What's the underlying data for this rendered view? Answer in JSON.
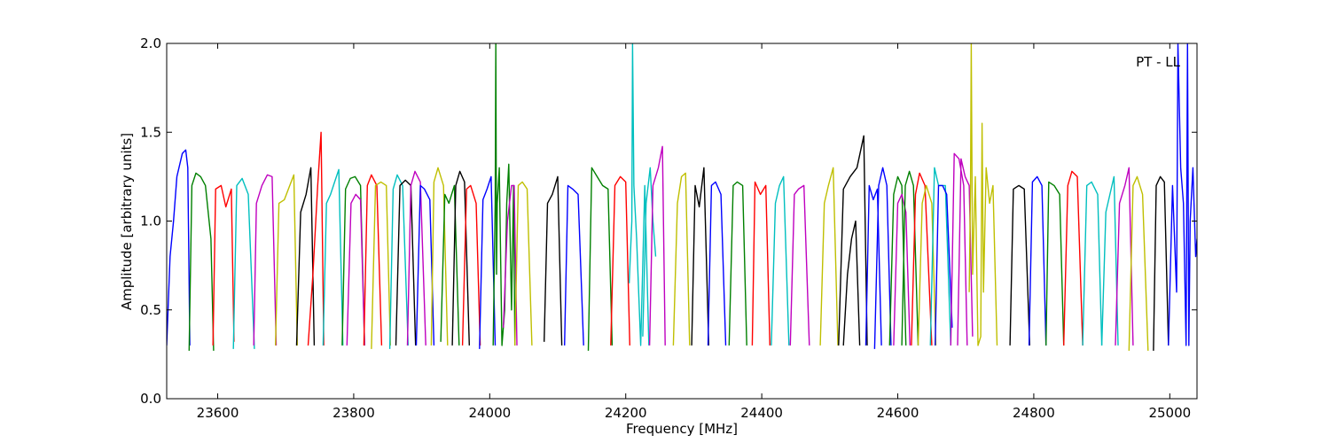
{
  "chart_data": {
    "type": "line",
    "title": "",
    "xlabel": "Frequency [MHz]",
    "ylabel": "Amplitude [arbitrary units]",
    "xlim": [
      23525,
      25040
    ],
    "ylim": [
      0.0,
      2.0
    ],
    "xticks": [
      23600,
      23800,
      24000,
      24200,
      24400,
      24600,
      24800,
      25000
    ],
    "yticks": [
      0.0,
      0.5,
      1.0,
      1.5,
      2.0
    ],
    "ytick_labels": [
      "0.0",
      "0.5",
      "1.0",
      "1.5",
      "2.0"
    ],
    "grid": false,
    "legend": "none",
    "annotation": "PT - LL",
    "palette": [
      "#0000ff",
      "#008000",
      "#ff0000",
      "#00bfbf",
      "#bf00bf",
      "#bfbf00",
      "#000000"
    ],
    "series": [
      {
        "color": "#0000ff",
        "x": [
          23525,
          23530,
          23535,
          23540,
          23548,
          23553,
          23556,
          23559
        ],
        "y": [
          0.3,
          0.8,
          1.0,
          1.25,
          1.38,
          1.4,
          1.3,
          0.3
        ]
      },
      {
        "color": "#008000",
        "x": [
          23558,
          23562,
          23568,
          23575,
          23582,
          23590,
          23594
        ],
        "y": [
          0.27,
          1.2,
          1.27,
          1.25,
          1.2,
          0.9,
          0.27
        ]
      },
      {
        "color": "#ff0000",
        "x": [
          23593,
          23597,
          23605,
          23612,
          23620,
          23624
        ],
        "y": [
          0.3,
          1.18,
          1.2,
          1.08,
          1.18,
          0.32
        ]
      },
      {
        "color": "#00bfbf",
        "x": [
          23623,
          23628,
          23636,
          23645,
          23654
        ],
        "y": [
          0.28,
          1.2,
          1.24,
          1.15,
          0.28
        ]
      },
      {
        "color": "#bf00bf",
        "x": [
          23653,
          23657,
          23665,
          23673,
          23680,
          23686
        ],
        "y": [
          0.3,
          1.1,
          1.2,
          1.26,
          1.25,
          0.3
        ]
      },
      {
        "color": "#bfbf00",
        "x": [
          23685,
          23690,
          23698,
          23706,
          23712,
          23717
        ],
        "y": [
          0.3,
          1.1,
          1.12,
          1.2,
          1.26,
          0.3
        ]
      },
      {
        "color": "#000000",
        "x": [
          23716,
          23722,
          23730,
          23737,
          23742
        ],
        "y": [
          0.3,
          1.05,
          1.15,
          1.3,
          0.3
        ]
      },
      {
        "color": "#ff0000",
        "x": [
          23733,
          23740,
          23747,
          23752,
          23756
        ],
        "y": [
          0.3,
          0.7,
          1.2,
          1.5,
          0.3
        ]
      },
      {
        "color": "#00bfbf",
        "x": [
          23755,
          23760,
          23766,
          23772,
          23778,
          23784
        ],
        "y": [
          0.3,
          1.1,
          1.15,
          1.22,
          1.29,
          0.3
        ]
      },
      {
        "color": "#008000",
        "x": [
          23783,
          23788,
          23795,
          23802,
          23810,
          23816
        ],
        "y": [
          0.3,
          1.18,
          1.24,
          1.25,
          1.2,
          0.3
        ]
      },
      {
        "color": "#bf00bf",
        "x": [
          23790,
          23796,
          23803,
          23810,
          23816
        ],
        "y": [
          0.3,
          1.1,
          1.15,
          1.12,
          0.3
        ]
      },
      {
        "color": "#ff0000",
        "x": [
          23815,
          23820,
          23826,
          23834,
          23841
        ],
        "y": [
          0.3,
          1.2,
          1.26,
          1.2,
          0.3
        ]
      },
      {
        "color": "#bfbf00",
        "x": [
          23826,
          23832,
          23840,
          23848,
          23854
        ],
        "y": [
          0.28,
          1.2,
          1.22,
          1.2,
          0.3
        ]
      },
      {
        "color": "#00bfbf",
        "x": [
          23853,
          23858,
          23864,
          23872,
          23880
        ],
        "y": [
          0.28,
          1.18,
          1.26,
          1.2,
          0.3
        ]
      },
      {
        "color": "#000000",
        "x": [
          23862,
          23868,
          23876,
          23884,
          23891
        ],
        "y": [
          0.3,
          1.2,
          1.23,
          1.2,
          0.3
        ]
      },
      {
        "color": "#bf00bf",
        "x": [
          23879,
          23884,
          23890,
          23898,
          23906
        ],
        "y": [
          0.3,
          1.2,
          1.28,
          1.22,
          0.3
        ]
      },
      {
        "color": "#0000ff",
        "x": [
          23892,
          23898,
          23904,
          23912,
          23918
        ],
        "y": [
          0.3,
          1.2,
          1.18,
          1.12,
          0.3
        ]
      },
      {
        "color": "#bfbf00",
        "x": [
          23914,
          23918,
          23924,
          23932,
          23938
        ],
        "y": [
          0.3,
          1.22,
          1.3,
          1.2,
          0.3
        ]
      },
      {
        "color": "#008000",
        "x": [
          23928,
          23934,
          23940,
          23948,
          23955
        ],
        "y": [
          0.32,
          1.15,
          1.1,
          1.2,
          0.3
        ]
      },
      {
        "color": "#000000",
        "x": [
          23945,
          23950,
          23956,
          23963,
          23970
        ],
        "y": [
          0.3,
          1.2,
          1.28,
          1.22,
          0.3
        ]
      },
      {
        "color": "#ff0000",
        "x": [
          23960,
          23966,
          23972,
          23980,
          23986
        ],
        "y": [
          0.3,
          1.18,
          1.2,
          1.1,
          0.3
        ]
      },
      {
        "color": "#0000ff",
        "x": [
          23985,
          23990,
          23996,
          24002,
          24008
        ],
        "y": [
          0.28,
          1.12,
          1.18,
          1.25,
          0.3
        ]
      },
      {
        "color": "#008000",
        "x": [
          24005,
          24008,
          24009,
          24010,
          24011,
          24014,
          24018,
          24022,
          24025,
          24028,
          24032,
          24035,
          24037
        ],
        "y": [
          0.3,
          1.1,
          2.0,
          0.7,
          1.1,
          1.3,
          0.3,
          0.5,
          1.1,
          1.32,
          0.5,
          1.2,
          0.3
        ]
      },
      {
        "color": "#bf00bf",
        "x": [
          24020,
          24026,
          24032,
          24036,
          24040
        ],
        "y": [
          0.4,
          1.0,
          1.2,
          1.2,
          0.3
        ]
      },
      {
        "color": "#bfbf00",
        "x": [
          24037,
          24042,
          24048,
          24055,
          24062
        ],
        "y": [
          0.3,
          1.2,
          1.22,
          1.18,
          0.3
        ]
      },
      {
        "color": "#000000",
        "x": [
          24080,
          24085,
          24092,
          24100,
          24106
        ],
        "y": [
          0.32,
          1.1,
          1.15,
          1.25,
          0.3
        ]
      },
      {
        "color": "#0000ff",
        "x": [
          24110,
          24115,
          24122,
          24130,
          24138
        ],
        "y": [
          0.3,
          1.2,
          1.18,
          1.15,
          0.3
        ]
      },
      {
        "color": "#008000",
        "x": [
          24145,
          24150,
          24158,
          24166,
          24174,
          24180
        ],
        "y": [
          0.27,
          1.3,
          1.25,
          1.2,
          1.18,
          0.3
        ]
      },
      {
        "color": "#ff0000",
        "x": [
          24178,
          24184,
          24192,
          24200,
          24206
        ],
        "y": [
          0.3,
          1.2,
          1.25,
          1.22,
          0.3
        ]
      },
      {
        "color": "#00bfbf",
        "x": [
          24205,
          24209,
          24210,
          24212,
          24216,
          24222,
          24228,
          24234
        ],
        "y": [
          0.65,
          1.0,
          2.0,
          1.2,
          0.9,
          0.3,
          1.2,
          0.3
        ]
      },
      {
        "color": "#00bfbf",
        "x": [
          24225,
          24230,
          24236,
          24240,
          24244
        ],
        "y": [
          0.35,
          1.1,
          1.3,
          1.0,
          0.8
        ]
      },
      {
        "color": "#bf00bf",
        "x": [
          24235,
          24240,
          24248,
          24254,
          24258
        ],
        "y": [
          0.3,
          1.2,
          1.3,
          1.42,
          0.3
        ]
      },
      {
        "color": "#bfbf00",
        "x": [
          24270,
          24276,
          24282,
          24288,
          24294
        ],
        "y": [
          0.3,
          1.1,
          1.25,
          1.27,
          0.3
        ]
      },
      {
        "color": "#000000",
        "x": [
          24297,
          24302,
          24308,
          24315,
          24322
        ],
        "y": [
          0.3,
          1.2,
          1.08,
          1.3,
          0.3
        ]
      },
      {
        "color": "#0000ff",
        "x": [
          24321,
          24326,
          24332,
          24340,
          24347
        ],
        "y": [
          0.3,
          1.2,
          1.22,
          1.15,
          0.3
        ]
      },
      {
        "color": "#008000",
        "x": [
          24352,
          24358,
          24364,
          24372,
          24378
        ],
        "y": [
          0.3,
          1.2,
          1.22,
          1.2,
          0.3
        ]
      },
      {
        "color": "#ff0000",
        "x": [
          24386,
          24390,
          24398,
          24406,
          24412
        ],
        "y": [
          0.3,
          1.22,
          1.15,
          1.2,
          0.3
        ]
      },
      {
        "color": "#00bfbf",
        "x": [
          24414,
          24420,
          24426,
          24432,
          24440
        ],
        "y": [
          0.3,
          1.1,
          1.2,
          1.25,
          0.3
        ]
      },
      {
        "color": "#bf00bf",
        "x": [
          24442,
          24448,
          24454,
          24462,
          24470
        ],
        "y": [
          0.3,
          1.15,
          1.18,
          1.2,
          0.3
        ]
      },
      {
        "color": "#bfbf00",
        "x": [
          24486,
          24492,
          24498,
          24505,
          24512
        ],
        "y": [
          0.3,
          1.1,
          1.2,
          1.3,
          0.3
        ]
      },
      {
        "color": "#000000",
        "x": [
          24513,
          24520,
          24530,
          24540,
          24550,
          24555
        ],
        "y": [
          0.3,
          1.18,
          1.25,
          1.3,
          1.48,
          0.3
        ]
      },
      {
        "color": "#000000",
        "x": [
          24520,
          24526,
          24532,
          24538,
          24544
        ],
        "y": [
          0.3,
          0.7,
          0.9,
          1.0,
          0.3
        ]
      },
      {
        "color": "#0000ff",
        "x": [
          24553,
          24558,
          24564,
          24570,
          24576
        ],
        "y": [
          0.3,
          1.2,
          1.12,
          1.18,
          0.3
        ]
      },
      {
        "color": "#0000ff",
        "x": [
          24566,
          24572,
          24578,
          24584,
          24590
        ],
        "y": [
          0.28,
          1.2,
          1.3,
          1.2,
          0.3
        ]
      },
      {
        "color": "#008000",
        "x": [
          24588,
          24594,
          24600,
          24606,
          24612
        ],
        "y": [
          0.3,
          1.15,
          1.25,
          1.2,
          0.3
        ]
      },
      {
        "color": "#bf00bf",
        "x": [
          24594,
          24600,
          24606,
          24612,
          24618
        ],
        "y": [
          0.3,
          1.1,
          1.15,
          1.05,
          0.3
        ]
      },
      {
        "color": "#008000",
        "x": [
          24606,
          24611,
          24617,
          24623,
          24630
        ],
        "y": [
          0.3,
          1.2,
          1.28,
          1.2,
          0.3
        ]
      },
      {
        "color": "#ff0000",
        "x": [
          24620,
          24626,
          24632,
          24640,
          24650
        ],
        "y": [
          0.3,
          1.15,
          1.27,
          1.2,
          0.3
        ]
      },
      {
        "color": "#bfbf00",
        "x": [
          24630,
          24636,
          24642,
          24650,
          24656
        ],
        "y": [
          0.3,
          1.1,
          1.2,
          1.1,
          0.3
        ]
      },
      {
        "color": "#00bfbf",
        "x": [
          24648,
          24654,
          24660,
          24670,
          24678
        ],
        "y": [
          0.3,
          1.3,
          1.2,
          1.2,
          0.3
        ]
      },
      {
        "color": "#0000ff",
        "x": [
          24655,
          24660,
          24666,
          24672,
          24680
        ],
        "y": [
          0.3,
          1.2,
          1.2,
          1.15,
          0.4
        ]
      },
      {
        "color": "#bf00bf",
        "x": [
          24678,
          24683,
          24690,
          24697,
          24702
        ],
        "y": [
          0.3,
          1.38,
          1.35,
          1.2,
          0.3
        ]
      },
      {
        "color": "#bf00bf",
        "x": [
          24688,
          24693,
          24699,
          24705,
          24710
        ],
        "y": [
          0.3,
          1.35,
          1.25,
          1.2,
          0.35
        ]
      },
      {
        "color": "#bfbf00",
        "x": [
          24705,
          24707,
          24708,
          24710,
          24714,
          24718,
          24722,
          24724,
          24726,
          24730,
          24735,
          24740,
          24746
        ],
        "y": [
          0.6,
          1.2,
          2.0,
          0.7,
          1.25,
          0.3,
          0.35,
          1.55,
          0.6,
          1.3,
          1.1,
          1.2,
          0.3
        ]
      },
      {
        "color": "#000000",
        "x": [
          24765,
          24770,
          24778,
          24786,
          24794
        ],
        "y": [
          0.3,
          1.18,
          1.2,
          1.18,
          0.3
        ]
      },
      {
        "color": "#0000ff",
        "x": [
          24793,
          24798,
          24805,
          24812,
          24818
        ],
        "y": [
          0.3,
          1.22,
          1.25,
          1.2,
          0.3
        ]
      },
      {
        "color": "#008000",
        "x": [
          24818,
          24822,
          24830,
          24838,
          24844
        ],
        "y": [
          0.3,
          1.22,
          1.2,
          1.15,
          0.3
        ]
      },
      {
        "color": "#ff0000",
        "x": [
          24844,
          24850,
          24856,
          24864,
          24872
        ],
        "y": [
          0.3,
          1.2,
          1.28,
          1.25,
          0.3
        ]
      },
      {
        "color": "#00bfbf",
        "x": [
          24872,
          24878,
          24885,
          24894,
          24900
        ],
        "y": [
          0.3,
          1.2,
          1.22,
          1.15,
          0.3
        ]
      },
      {
        "color": "#00bfbf",
        "x": [
          24900,
          24906,
          24912,
          24918,
          24924
        ],
        "y": [
          0.3,
          1.05,
          1.15,
          1.25,
          0.3
        ]
      },
      {
        "color": "#bf00bf",
        "x": [
          24920,
          24926,
          24934,
          24940,
          24946
        ],
        "y": [
          0.3,
          1.1,
          1.2,
          1.3,
          0.3
        ]
      },
      {
        "color": "#bfbf00",
        "x": [
          24940,
          24946,
          24952,
          24960,
          24968
        ],
        "y": [
          0.27,
          1.2,
          1.25,
          1.15,
          0.27
        ]
      },
      {
        "color": "#000000",
        "x": [
          24976,
          24980,
          24986,
          24992,
          24998
        ],
        "y": [
          0.27,
          1.2,
          1.25,
          1.22,
          0.3
        ]
      },
      {
        "color": "#0000ff",
        "x": [
          24998,
          25004,
          25010,
          25012,
          25016,
          25020,
          25024,
          25026,
          25028,
          25030,
          25034,
          25038,
          25040
        ],
        "y": [
          0.3,
          1.2,
          0.6,
          2.0,
          1.3,
          1.1,
          0.3,
          2.0,
          0.3,
          1.0,
          1.3,
          0.8,
          0.9
        ]
      }
    ]
  }
}
